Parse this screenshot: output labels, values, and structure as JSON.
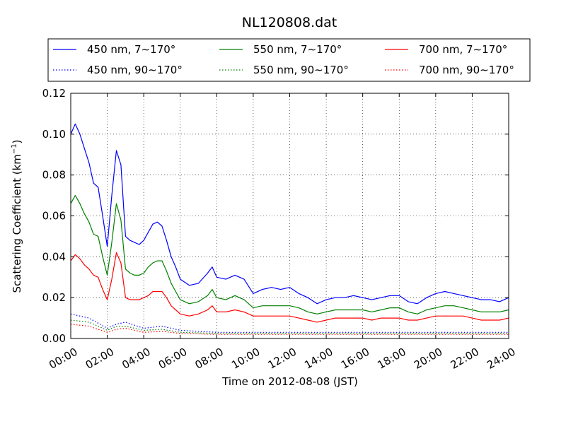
{
  "chart_data": {
    "type": "line",
    "title": "NL120808.dat",
    "xlabel": "Time on 2012-08-08 (JST)",
    "ylabel": "Scattering Coefficient (km",
    "ylabel_sup": "−1",
    "ylabel_end": ")",
    "xlim": [
      "00:00",
      "24:00"
    ],
    "ylim": [
      0,
      0.12
    ],
    "x_ticks": [
      "00:00",
      "02:00",
      "04:00",
      "06:00",
      "08:00",
      "10:00",
      "12:00",
      "14:00",
      "16:00",
      "18:00",
      "20:00",
      "22:00",
      "24:00"
    ],
    "y_ticks": [
      "0.00",
      "0.02",
      "0.04",
      "0.06",
      "0.08",
      "0.10",
      "0.12"
    ],
    "grid": true,
    "legend_position": "top",
    "colors": {
      "450": "#0000ff",
      "550": "#008000",
      "700": "#ff0000"
    },
    "series": [
      {
        "name": "450 nm, 7∼170°",
        "color": "#0000ff",
        "style": "solid",
        "x": [
          "00:00",
          "00:15",
          "00:30",
          "00:45",
          "01:00",
          "01:15",
          "01:30",
          "01:45",
          "02:00",
          "02:15",
          "02:30",
          "02:45",
          "03:00",
          "03:15",
          "03:30",
          "03:45",
          "04:00",
          "04:15",
          "04:30",
          "04:45",
          "05:00",
          "05:15",
          "05:30",
          "05:45",
          "06:00",
          "06:30",
          "07:00",
          "07:30",
          "07:45",
          "08:00",
          "08:30",
          "09:00",
          "09:30",
          "10:00",
          "10:30",
          "11:00",
          "11:30",
          "12:00",
          "12:30",
          "13:00",
          "13:30",
          "14:00",
          "14:30",
          "15:00",
          "15:30",
          "16:00",
          "16:30",
          "17:00",
          "17:30",
          "18:00",
          "18:30",
          "19:00",
          "19:30",
          "20:00",
          "20:30",
          "21:00",
          "21:30",
          "22:00",
          "22:30",
          "23:00",
          "23:30",
          "24:00"
        ],
        "y": [
          0.1,
          0.105,
          0.1,
          0.093,
          0.086,
          0.076,
          0.074,
          0.06,
          0.045,
          0.07,
          0.092,
          0.085,
          0.05,
          0.048,
          0.047,
          0.046,
          0.048,
          0.052,
          0.056,
          0.057,
          0.055,
          0.048,
          0.04,
          0.035,
          0.029,
          0.026,
          0.027,
          0.032,
          0.035,
          0.03,
          0.029,
          0.031,
          0.029,
          0.022,
          0.024,
          0.025,
          0.024,
          0.025,
          0.022,
          0.02,
          0.017,
          0.019,
          0.02,
          0.02,
          0.021,
          0.02,
          0.019,
          0.02,
          0.021,
          0.021,
          0.018,
          0.017,
          0.02,
          0.022,
          0.023,
          0.022,
          0.021,
          0.02,
          0.019,
          0.019,
          0.018,
          0.02
        ]
      },
      {
        "name": "550 nm, 7∼170°",
        "color": "#008000",
        "style": "solid",
        "x": [
          "00:00",
          "00:15",
          "00:30",
          "00:45",
          "01:00",
          "01:15",
          "01:30",
          "01:45",
          "02:00",
          "02:15",
          "02:30",
          "02:45",
          "03:00",
          "03:15",
          "03:30",
          "03:45",
          "04:00",
          "04:15",
          "04:30",
          "04:45",
          "05:00",
          "05:15",
          "05:30",
          "05:45",
          "06:00",
          "06:30",
          "07:00",
          "07:30",
          "07:45",
          "08:00",
          "08:30",
          "09:00",
          "09:30",
          "10:00",
          "10:30",
          "11:00",
          "11:30",
          "12:00",
          "12:30",
          "13:00",
          "13:30",
          "14:00",
          "14:30",
          "15:00",
          "15:30",
          "16:00",
          "16:30",
          "17:00",
          "17:30",
          "18:00",
          "18:30",
          "19:00",
          "19:30",
          "20:00",
          "20:30",
          "21:00",
          "21:30",
          "22:00",
          "22:30",
          "23:00",
          "23:30",
          "24:00"
        ],
        "y": [
          0.066,
          0.07,
          0.066,
          0.061,
          0.057,
          0.051,
          0.05,
          0.04,
          0.031,
          0.047,
          0.066,
          0.058,
          0.034,
          0.032,
          0.031,
          0.031,
          0.032,
          0.035,
          0.037,
          0.038,
          0.038,
          0.033,
          0.027,
          0.023,
          0.019,
          0.017,
          0.018,
          0.021,
          0.024,
          0.02,
          0.019,
          0.021,
          0.019,
          0.015,
          0.016,
          0.016,
          0.016,
          0.016,
          0.015,
          0.013,
          0.012,
          0.013,
          0.014,
          0.014,
          0.014,
          0.014,
          0.013,
          0.014,
          0.015,
          0.015,
          0.013,
          0.012,
          0.014,
          0.015,
          0.016,
          0.016,
          0.015,
          0.014,
          0.013,
          0.013,
          0.013,
          0.014
        ]
      },
      {
        "name": "700 nm, 7∼170°",
        "color": "#ff0000",
        "style": "solid",
        "x": [
          "00:00",
          "00:15",
          "00:30",
          "00:45",
          "01:00",
          "01:15",
          "01:30",
          "01:45",
          "02:00",
          "02:15",
          "02:30",
          "02:45",
          "03:00",
          "03:15",
          "03:30",
          "03:45",
          "04:00",
          "04:15",
          "04:30",
          "04:45",
          "05:00",
          "05:15",
          "05:30",
          "05:45",
          "06:00",
          "06:30",
          "07:00",
          "07:30",
          "07:45",
          "08:00",
          "08:30",
          "09:00",
          "09:30",
          "10:00",
          "10:30",
          "11:00",
          "11:30",
          "12:00",
          "12:30",
          "13:00",
          "13:30",
          "14:00",
          "14:30",
          "15:00",
          "15:30",
          "16:00",
          "16:30",
          "17:00",
          "17:30",
          "18:00",
          "18:30",
          "19:00",
          "19:30",
          "20:00",
          "20:30",
          "21:00",
          "21:30",
          "22:00",
          "22:30",
          "23:00",
          "23:30",
          "24:00"
        ],
        "y": [
          0.038,
          0.041,
          0.039,
          0.036,
          0.034,
          0.031,
          0.03,
          0.024,
          0.019,
          0.029,
          0.042,
          0.037,
          0.02,
          0.019,
          0.019,
          0.019,
          0.02,
          0.021,
          0.023,
          0.023,
          0.023,
          0.02,
          0.016,
          0.014,
          0.012,
          0.011,
          0.012,
          0.014,
          0.016,
          0.013,
          0.013,
          0.014,
          0.013,
          0.011,
          0.011,
          0.011,
          0.011,
          0.011,
          0.01,
          0.009,
          0.008,
          0.009,
          0.01,
          0.01,
          0.01,
          0.01,
          0.009,
          0.01,
          0.01,
          0.01,
          0.009,
          0.009,
          0.01,
          0.011,
          0.011,
          0.011,
          0.011,
          0.01,
          0.009,
          0.009,
          0.009,
          0.01
        ]
      },
      {
        "name": "450 nm, 90∼170°",
        "color": "#0000ff",
        "style": "dotted",
        "x": [
          "00:00",
          "01:00",
          "02:00",
          "02:30",
          "03:00",
          "04:00",
          "05:00",
          "06:00",
          "08:00",
          "10:00",
          "12:00",
          "14:00",
          "16:00",
          "18:00",
          "20:00",
          "22:00",
          "24:00"
        ],
        "y": [
          0.012,
          0.01,
          0.005,
          0.007,
          0.008,
          0.005,
          0.006,
          0.004,
          0.003,
          0.003,
          0.003,
          0.003,
          0.003,
          0.003,
          0.003,
          0.003,
          0.003
        ]
      },
      {
        "name": "550 nm, 90∼170°",
        "color": "#008000",
        "style": "dotted",
        "x": [
          "00:00",
          "01:00",
          "02:00",
          "02:30",
          "03:00",
          "04:00",
          "05:00",
          "06:00",
          "08:00",
          "10:00",
          "12:00",
          "14:00",
          "16:00",
          "18:00",
          "20:00",
          "22:00",
          "24:00"
        ],
        "y": [
          0.009,
          0.008,
          0.004,
          0.006,
          0.006,
          0.004,
          0.0045,
          0.003,
          0.0025,
          0.0025,
          0.0025,
          0.0025,
          0.0025,
          0.0025,
          0.0025,
          0.0025,
          0.0025
        ]
      },
      {
        "name": "700 nm, 90∼170°",
        "color": "#ff0000",
        "style": "dotted",
        "x": [
          "00:00",
          "01:00",
          "02:00",
          "02:30",
          "03:00",
          "04:00",
          "05:00",
          "06:00",
          "08:00",
          "10:00",
          "12:00",
          "14:00",
          "16:00",
          "18:00",
          "20:00",
          "22:00",
          "24:00"
        ],
        "y": [
          0.007,
          0.006,
          0.003,
          0.0045,
          0.005,
          0.003,
          0.0035,
          0.0025,
          0.002,
          0.002,
          0.002,
          0.002,
          0.002,
          0.002,
          0.002,
          0.002,
          0.002
        ]
      }
    ]
  }
}
